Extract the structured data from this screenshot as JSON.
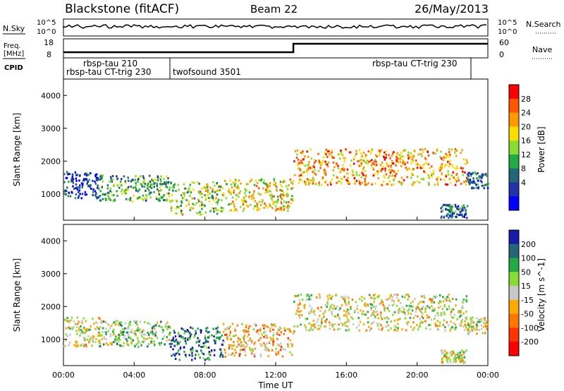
{
  "header": {
    "station_label": "Blackstone (fitACF)",
    "beam_label": "Beam 22",
    "date_label": "26/May/2013"
  },
  "strip_labels": {
    "nsky": "N.Sky",
    "nsearch": "N.Search",
    "freq": "Freq.",
    "freq_unit": "[MHz]",
    "nave": "Nave",
    "cpid": "CPID",
    "nsky_ticks": [
      "10^5",
      "10^0"
    ],
    "right_ticks_top": [
      "10^5",
      "10^0"
    ],
    "freq_ticks": [
      "18",
      "8"
    ],
    "nave_ticks": [
      "60",
      "0"
    ]
  },
  "cpid_segments": [
    {
      "label": "rbsp-tau 210",
      "start_hour": 1.0
    },
    {
      "label": "rbsp-tau CT-trig 230",
      "start_hour": 0.0
    },
    {
      "label": "twofsound 3501",
      "start_hour": 6.0
    },
    {
      "label": "rbsp-tau CT-trig 230",
      "start_hour": 22.8
    }
  ],
  "chart_data": [
    {
      "type": "heatmap",
      "quantity": "power",
      "xlabel": "",
      "ylabel": "Slant Range [km]",
      "xlim": [
        0,
        24
      ],
      "ylim": [
        200,
        4500
      ],
      "yticks": [
        1000,
        2000,
        3000,
        4000
      ],
      "ytick_labels": [
        "1000",
        "2000",
        "3000",
        "4000"
      ],
      "colorbar_label": "Power [dB]",
      "colorbar_ticks": [
        "28",
        "24",
        "20",
        "16",
        "12",
        "8",
        "4"
      ],
      "colorbar_colors": [
        "#ff0000",
        "#ff5500",
        "#ff9900",
        "#ffdd00",
        "#88dd33",
        "#22aa44",
        "#226677",
        "#2233aa",
        "#0000ff"
      ],
      "echo_bands": [
        {
          "t0": 0.0,
          "t1": 2.0,
          "r0": 900,
          "r1": 1700,
          "level": 7
        },
        {
          "t0": 2.0,
          "t1": 6.0,
          "r0": 800,
          "r1": 1600,
          "level": 5
        },
        {
          "t0": 6.0,
          "t1": 9.0,
          "r0": 400,
          "r1": 1400,
          "level": 4
        },
        {
          "t0": 9.0,
          "t1": 13.0,
          "r0": 500,
          "r1": 1500,
          "level": 3
        },
        {
          "t0": 13.0,
          "t1": 22.8,
          "r0": 1300,
          "r1": 2400,
          "level": 2
        },
        {
          "t0": 21.3,
          "t1": 22.8,
          "r0": 300,
          "r1": 700,
          "level": 6
        },
        {
          "t0": 22.8,
          "t1": 24.0,
          "r0": 1200,
          "r1": 1700,
          "level": 6
        }
      ]
    },
    {
      "type": "heatmap",
      "quantity": "velocity",
      "xlabel": "Time UT",
      "ylabel": "Slant Range [km]",
      "xlim": [
        0,
        24
      ],
      "ylim": [
        200,
        4500
      ],
      "xticks": [
        0,
        4,
        8,
        12,
        16,
        20,
        24
      ],
      "xtick_labels": [
        "00:00",
        "04:00",
        "08:00",
        "12:00",
        "16:00",
        "20:00",
        "00:00"
      ],
      "yticks": [
        1000,
        2000,
        3000,
        4000
      ],
      "ytick_labels": [
        "1000",
        "2000",
        "3000",
        "4000"
      ],
      "colorbar_label": "Velocity [m s^-1]",
      "colorbar_ticks": [
        "200",
        "100",
        "50",
        "15",
        "-15",
        "-50",
        "-100",
        "-200"
      ],
      "colorbar_colors": [
        "#1a1aaa",
        "#226677",
        "#22aa44",
        "#88dd33",
        "#c8c8c8",
        "#ffaa00",
        "#ff7700",
        "#ff3300",
        "#ff0000"
      ],
      "echo_bands": [
        {
          "t0": 0.0,
          "t1": 2.0,
          "r0": 800,
          "r1": 1700,
          "level": 4
        },
        {
          "t0": 2.0,
          "t1": 6.0,
          "r0": 800,
          "r1": 1600,
          "level": 3
        },
        {
          "t0": 6.0,
          "t1": 9.0,
          "r0": 400,
          "r1": 1400,
          "level": 1
        },
        {
          "t0": 9.0,
          "t1": 13.0,
          "r0": 500,
          "r1": 1500,
          "level": 5
        },
        {
          "t0": 13.0,
          "t1": 22.8,
          "r0": 1300,
          "r1": 2400,
          "level": 4
        },
        {
          "t0": 21.3,
          "t1": 22.8,
          "r0": 300,
          "r1": 700,
          "level": 4
        },
        {
          "t0": 22.8,
          "t1": 24.0,
          "r0": 1200,
          "r1": 1700,
          "level": 4
        }
      ]
    }
  ]
}
